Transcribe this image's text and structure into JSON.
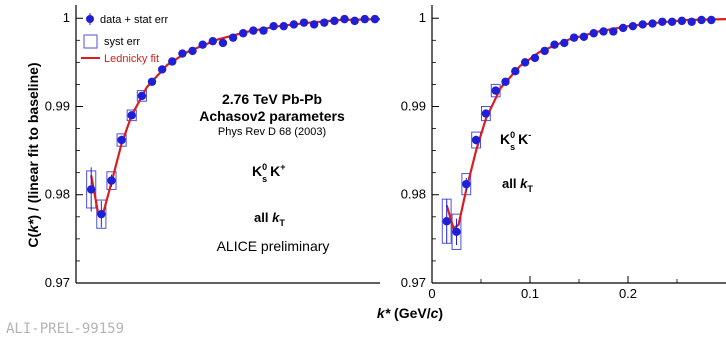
{
  "ylabel_parts": [
    "C(",
    "k*",
    ") / (linear fit to baseline)"
  ],
  "xlabel_parts": [
    "k*",
    " (GeV/",
    "c",
    ")"
  ],
  "legend": {
    "data": "data + stat err",
    "syst": "syst err",
    "fit": "Lednicky fit"
  },
  "annotations": {
    "energy": "2.76 TeV Pb-Pb",
    "params": "Achasov2 parameters",
    "ref": "Phys Rev D 68 (2003)",
    "left_pair": {
      "k1": "K",
      "k1_sup": "0",
      "k1_sub": "s",
      "k2": "K",
      "k2_sup": "+"
    },
    "right_pair": {
      "k1": "K",
      "k1_sup": "0",
      "k1_sub": "s",
      "k2": "K",
      "k2_sup": "-"
    },
    "kt": {
      "prefix": "all ",
      "k": "k",
      "sub": "T"
    },
    "preliminary": "ALICE preliminary",
    "watermark": "ALI-PREL-99159"
  },
  "colors": {
    "data": "#1f1fd6",
    "fit": "#d81e1e",
    "syst": "#4f4fdc",
    "axis": "#000000",
    "watermark": "#b4b4b4"
  },
  "chart_data": [
    {
      "type": "scatter",
      "panel": "K0s K+",
      "xlim": [
        0,
        0.3
      ],
      "ylim": [
        0.97,
        1.0015
      ],
      "y_ticks": [
        0.97,
        0.98,
        0.99,
        1
      ],
      "y_tick_labels": [
        "0.97",
        "0.98",
        "0.99",
        "1"
      ],
      "x_ticks": [],
      "x_tick_labels": [],
      "series": [
        {
          "name": "data + stat err",
          "x": [
            0.015,
            0.025,
            0.035,
            0.045,
            0.055,
            0.065,
            0.075,
            0.085,
            0.095,
            0.105,
            0.115,
            0.125,
            0.135,
            0.145,
            0.155,
            0.165,
            0.175,
            0.185,
            0.195,
            0.205,
            0.215,
            0.225,
            0.235,
            0.245,
            0.255,
            0.265,
            0.275,
            0.285,
            0.295
          ],
          "y": [
            0.9806,
            0.9778,
            0.9816,
            0.9862,
            0.989,
            0.9912,
            0.9928,
            0.9942,
            0.9951,
            0.996,
            0.9963,
            0.997,
            0.9974,
            0.9972,
            0.9978,
            0.9983,
            0.9986,
            0.9986,
            0.9991,
            0.9991,
            0.9993,
            0.9995,
            0.9993,
            0.9995,
            0.9997,
            0.9999,
            0.9997,
            0.9999,
            0.9999
          ],
          "err": [
            0.0025,
            0.0015,
            0.0007,
            0.0005,
            0.0004,
            0.0003,
            0.0003,
            0.0002,
            0.0002,
            0.0002,
            0.0002,
            0.0002,
            0.0002,
            0.0002,
            0.0002,
            0.0002,
            0.0002,
            0.0002,
            0.0002,
            0.0002,
            0.0002,
            0.0002,
            0.0002,
            0.0002,
            0.0002,
            0.0002,
            0.0002,
            0.0002,
            0.0002
          ]
        },
        {
          "name": "syst err",
          "x": [
            0.015,
            0.025,
            0.035,
            0.045,
            0.055,
            0.065
          ],
          "y_low": [
            0.9785,
            0.9762,
            0.9806,
            0.9855,
            0.9884,
            0.9906
          ],
          "y_high": [
            0.9827,
            0.9794,
            0.9826,
            0.9869,
            0.9896,
            0.9918
          ]
        },
        {
          "name": "Lednicky fit",
          "x": [
            0.015,
            0.022,
            0.027,
            0.035,
            0.045,
            0.055,
            0.07,
            0.09,
            0.11,
            0.14,
            0.17,
            0.2,
            0.23,
            0.26,
            0.3
          ],
          "y": [
            0.9822,
            0.9778,
            0.978,
            0.9814,
            0.9858,
            0.989,
            0.9922,
            0.9947,
            0.9962,
            0.9976,
            0.9985,
            0.9991,
            0.9995,
            0.9998,
            0.9999
          ]
        }
      ]
    },
    {
      "type": "scatter",
      "panel": "K0s K-",
      "xlim": [
        0,
        0.3
      ],
      "ylim": [
        0.97,
        1.0015
      ],
      "y_ticks": [
        0.97,
        0.98,
        0.99,
        1
      ],
      "y_tick_labels": [
        "0.97",
        "0.98",
        "0.99",
        "1"
      ],
      "x_ticks": [
        0,
        0.1,
        0.2
      ],
      "x_tick_labels": [
        "0",
        "0.1",
        "0.2"
      ],
      "series": [
        {
          "name": "data + stat err",
          "x": [
            0.015,
            0.025,
            0.035,
            0.045,
            0.055,
            0.065,
            0.075,
            0.085,
            0.095,
            0.105,
            0.115,
            0.125,
            0.135,
            0.145,
            0.155,
            0.165,
            0.175,
            0.185,
            0.195,
            0.205,
            0.215,
            0.225,
            0.235,
            0.245,
            0.255,
            0.265,
            0.275,
            0.285
          ],
          "y": [
            0.977,
            0.9758,
            0.9812,
            0.9862,
            0.9892,
            0.9918,
            0.9928,
            0.994,
            0.995,
            0.9955,
            0.9963,
            0.997,
            0.9972,
            0.9978,
            0.9979,
            0.9983,
            0.9985,
            0.9985,
            0.9989,
            0.9991,
            0.9993,
            0.9994,
            0.9996,
            0.9996,
            0.9997,
            0.9996,
            0.9998,
            0.9998
          ],
          "err": [
            0.0025,
            0.0015,
            0.0007,
            0.0005,
            0.0004,
            0.0003,
            0.0003,
            0.0002,
            0.0002,
            0.0002,
            0.0002,
            0.0002,
            0.0002,
            0.0002,
            0.0002,
            0.0002,
            0.0002,
            0.0002,
            0.0002,
            0.0002,
            0.0002,
            0.0002,
            0.0002,
            0.0002,
            0.0002,
            0.0002,
            0.0002,
            0.0002
          ]
        },
        {
          "name": "syst err",
          "x": [
            0.015,
            0.025,
            0.035,
            0.045,
            0.055,
            0.065
          ],
          "y_low": [
            0.9745,
            0.9738,
            0.98,
            0.9853,
            0.9884,
            0.9911
          ],
          "y_high": [
            0.9795,
            0.9778,
            0.9824,
            0.9871,
            0.99,
            0.9925
          ]
        },
        {
          "name": "Lednicky fit",
          "x": [
            0.015,
            0.022,
            0.027,
            0.035,
            0.045,
            0.055,
            0.07,
            0.09,
            0.11,
            0.14,
            0.17,
            0.2,
            0.23,
            0.26,
            0.3
          ],
          "y": [
            0.9788,
            0.9762,
            0.9766,
            0.9806,
            0.985,
            0.9886,
            0.9921,
            0.9946,
            0.9962,
            0.9976,
            0.9985,
            0.9991,
            0.9995,
            0.9998,
            0.9999
          ]
        }
      ]
    }
  ]
}
